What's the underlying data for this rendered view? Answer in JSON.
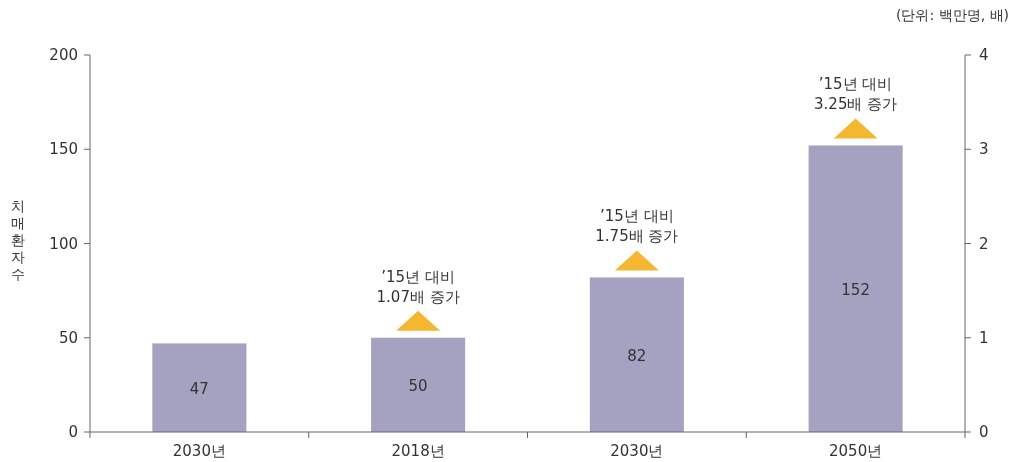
{
  "chart_data": {
    "type": "bar",
    "ylabel": "치매환자 수",
    "categories": [
      "2030년",
      "2018년",
      "2030년",
      "2050년"
    ],
    "values": [
      47,
      50,
      82,
      152
    ],
    "color": "#a5a1c0",
    "data_labels": true,
    "ylim": [
      0,
      200
    ],
    "yticks": [
      0,
      50,
      100,
      150,
      200
    ],
    "y2lim": [
      0,
      4
    ],
    "y2ticks": [
      0,
      1,
      2,
      3,
      4
    ],
    "annotations": [
      "(단위: 백만명, 배)",
      "’15년 대비\n1.07배 증가",
      "’15년 대비\n1.75배 증가",
      "’15년 대비\n3.25배 증가"
    ]
  }
}
